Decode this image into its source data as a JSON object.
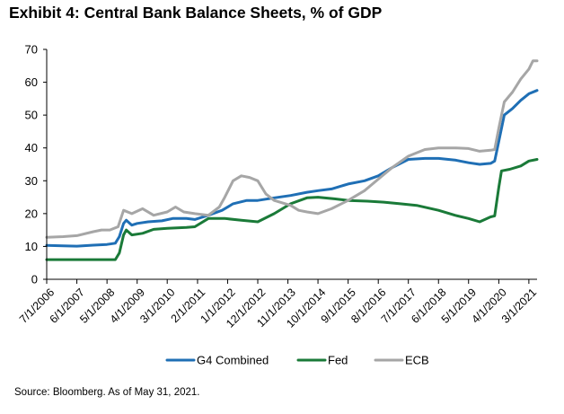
{
  "title": "Exhibit 4: Central Bank Balance Sheets, % of GDP",
  "source": "Source: Bloomberg. As of May 31, 2021.",
  "colors": {
    "g4": "#1f6fb5",
    "fed": "#1a7a38",
    "ecb": "#a6a6a6",
    "axis": "#000000"
  },
  "chart_data": {
    "type": "line",
    "title": "Exhibit 4: Central Bank Balance Sheets, % of GDP",
    "xlabel": "",
    "ylabel": "",
    "ylim": [
      0,
      70
    ],
    "xlim": [
      "2006-07-01",
      "2021-05-31"
    ],
    "yticks": [
      0,
      10,
      20,
      30,
      40,
      50,
      60,
      70
    ],
    "xtick_labels": [
      "7/1/2006",
      "6/1/2007",
      "5/1/2008",
      "4/1/2009",
      "3/1/2010",
      "2/1/2011",
      "1/1/2012",
      "12/1/2012",
      "11/1/2013",
      "10/1/2014",
      "9/1/2015",
      "8/1/2016",
      "7/1/2017",
      "6/1/2018",
      "5/1/2019",
      "4/1/2020",
      "3/1/2021"
    ],
    "grid": false,
    "legend": "bottom",
    "series": [
      {
        "name": "G4 Combined",
        "points": [
          [
            "2006-07-01",
            10.3
          ],
          [
            "2007-01-01",
            10.2
          ],
          [
            "2007-06-01",
            10.1
          ],
          [
            "2007-12-01",
            10.4
          ],
          [
            "2008-05-01",
            10.6
          ],
          [
            "2008-08-01",
            11.0
          ],
          [
            "2008-09-15",
            13.0
          ],
          [
            "2008-11-01",
            17.0
          ],
          [
            "2008-12-01",
            18.0
          ],
          [
            "2009-02-01",
            16.5
          ],
          [
            "2009-04-01",
            17.0
          ],
          [
            "2009-08-01",
            17.5
          ],
          [
            "2010-01-01",
            17.8
          ],
          [
            "2010-05-01",
            18.5
          ],
          [
            "2010-10-01",
            18.5
          ],
          [
            "2011-01-01",
            18.2
          ],
          [
            "2011-06-01",
            19.5
          ],
          [
            "2011-11-01",
            21.0
          ],
          [
            "2012-03-01",
            23.0
          ],
          [
            "2012-08-01",
            24.0
          ],
          [
            "2012-12-01",
            24.0
          ],
          [
            "2013-06-01",
            24.8
          ],
          [
            "2013-12-01",
            25.5
          ],
          [
            "2014-06-01",
            26.5
          ],
          [
            "2014-10-01",
            27.0
          ],
          [
            "2015-03-01",
            27.5
          ],
          [
            "2015-09-01",
            29.0
          ],
          [
            "2016-03-01",
            30.0
          ],
          [
            "2016-08-01",
            31.5
          ],
          [
            "2017-01-01",
            34.0
          ],
          [
            "2017-07-01",
            36.5
          ],
          [
            "2018-01-01",
            36.8
          ],
          [
            "2018-06-01",
            36.8
          ],
          [
            "2018-12-01",
            36.3
          ],
          [
            "2019-05-01",
            35.5
          ],
          [
            "2019-09-01",
            35.0
          ],
          [
            "2020-01-01",
            35.3
          ],
          [
            "2020-02-15",
            36.0
          ],
          [
            "2020-04-01",
            42.0
          ],
          [
            "2020-06-01",
            50.0
          ],
          [
            "2020-09-01",
            52.0
          ],
          [
            "2020-12-01",
            54.5
          ],
          [
            "2021-03-01",
            56.5
          ],
          [
            "2021-05-31",
            57.5
          ]
        ]
      },
      {
        "name": "Fed",
        "points": [
          [
            "2006-07-01",
            6.0
          ],
          [
            "2007-06-01",
            6.0
          ],
          [
            "2008-05-01",
            6.0
          ],
          [
            "2008-08-01",
            6.0
          ],
          [
            "2008-09-15",
            8.0
          ],
          [
            "2008-11-01",
            13.5
          ],
          [
            "2008-12-01",
            15.0
          ],
          [
            "2009-02-01",
            13.5
          ],
          [
            "2009-06-01",
            14.0
          ],
          [
            "2009-10-01",
            15.2
          ],
          [
            "2010-03-01",
            15.5
          ],
          [
            "2010-10-01",
            15.8
          ],
          [
            "2011-01-01",
            16.0
          ],
          [
            "2011-06-01",
            18.5
          ],
          [
            "2011-12-01",
            18.5
          ],
          [
            "2012-06-01",
            18.0
          ],
          [
            "2012-12-01",
            17.5
          ],
          [
            "2013-06-01",
            20.0
          ],
          [
            "2013-12-01",
            23.0
          ],
          [
            "2014-06-01",
            24.8
          ],
          [
            "2014-10-01",
            25.0
          ],
          [
            "2015-04-01",
            24.5
          ],
          [
            "2015-09-01",
            24.0
          ],
          [
            "2016-04-01",
            23.8
          ],
          [
            "2016-10-01",
            23.5
          ],
          [
            "2017-04-01",
            23.0
          ],
          [
            "2017-10-01",
            22.5
          ],
          [
            "2018-06-01",
            21.0
          ],
          [
            "2018-12-01",
            19.5
          ],
          [
            "2019-05-01",
            18.5
          ],
          [
            "2019-09-01",
            17.5
          ],
          [
            "2020-01-01",
            19.0
          ],
          [
            "2020-02-15",
            19.3
          ],
          [
            "2020-04-01",
            28.0
          ],
          [
            "2020-05-01",
            33.0
          ],
          [
            "2020-08-01",
            33.5
          ],
          [
            "2020-12-01",
            34.5
          ],
          [
            "2021-03-01",
            36.0
          ],
          [
            "2021-05-31",
            36.5
          ]
        ]
      },
      {
        "name": "ECB",
        "points": [
          [
            "2006-07-01",
            12.8
          ],
          [
            "2007-01-01",
            13.0
          ],
          [
            "2007-06-01",
            13.3
          ],
          [
            "2007-12-01",
            14.5
          ],
          [
            "2008-03-01",
            15.0
          ],
          [
            "2008-06-01",
            15.0
          ],
          [
            "2008-09-01",
            16.0
          ],
          [
            "2008-11-01",
            21.0
          ],
          [
            "2009-02-01",
            20.0
          ],
          [
            "2009-06-01",
            21.5
          ],
          [
            "2009-10-01",
            19.5
          ],
          [
            "2010-03-01",
            20.5
          ],
          [
            "2010-06-01",
            22.0
          ],
          [
            "2010-09-01",
            20.5
          ],
          [
            "2011-01-01",
            20.0
          ],
          [
            "2011-06-01",
            19.5
          ],
          [
            "2011-10-01",
            22.0
          ],
          [
            "2011-12-01",
            25.0
          ],
          [
            "2012-03-01",
            30.0
          ],
          [
            "2012-06-01",
            31.5
          ],
          [
            "2012-09-01",
            31.0
          ],
          [
            "2012-12-01",
            30.0
          ],
          [
            "2013-03-01",
            26.0
          ],
          [
            "2013-06-01",
            24.0
          ],
          [
            "2013-12-01",
            22.5
          ],
          [
            "2014-03-01",
            21.0
          ],
          [
            "2014-06-01",
            20.5
          ],
          [
            "2014-10-01",
            20.0
          ],
          [
            "2015-03-01",
            21.5
          ],
          [
            "2015-09-01",
            24.0
          ],
          [
            "2016-03-01",
            27.0
          ],
          [
            "2016-08-01",
            30.5
          ],
          [
            "2017-01-01",
            34.0
          ],
          [
            "2017-07-01",
            37.5
          ],
          [
            "2018-01-01",
            39.5
          ],
          [
            "2018-06-01",
            40.0
          ],
          [
            "2018-12-01",
            40.0
          ],
          [
            "2019-05-01",
            39.8
          ],
          [
            "2019-09-01",
            39.0
          ],
          [
            "2020-01-01",
            39.3
          ],
          [
            "2020-02-15",
            39.5
          ],
          [
            "2020-04-01",
            46.0
          ],
          [
            "2020-06-01",
            54.0
          ],
          [
            "2020-09-01",
            57.0
          ],
          [
            "2020-12-01",
            61.0
          ],
          [
            "2021-03-01",
            64.0
          ],
          [
            "2021-04-15",
            66.5
          ],
          [
            "2021-05-31",
            66.5
          ]
        ]
      }
    ]
  }
}
